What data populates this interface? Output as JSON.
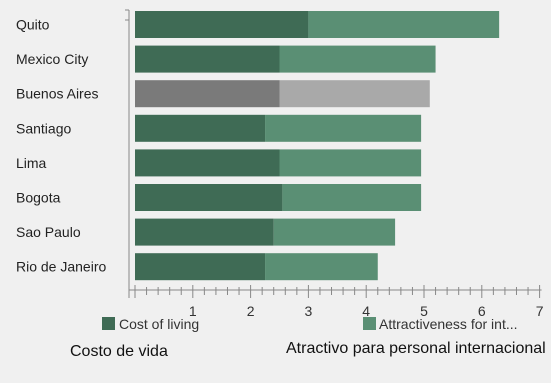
{
  "chart_data": {
    "type": "bar",
    "orientation": "horizontal",
    "stacked": true,
    "categories": [
      "Quito",
      "Mexico City",
      "Buenos Aires",
      "Santiago",
      "Lima",
      "Bogota",
      "Sao Paulo",
      "Rio de Janeiro"
    ],
    "series": [
      {
        "name": "Cost of living",
        "values": [
          3.0,
          2.5,
          2.5,
          2.25,
          2.5,
          2.55,
          2.4,
          2.25
        ]
      },
      {
        "name": "Attractiveness for int...",
        "values": [
          3.3,
          2.7,
          2.6,
          2.7,
          2.45,
          2.4,
          2.1,
          1.95
        ]
      }
    ],
    "xlim": [
      0,
      7
    ],
    "x_ticks": [
      "1",
      "2",
      "3",
      "4",
      "5",
      "6",
      "7"
    ],
    "grid": false,
    "legend": "bottom",
    "colors": {
      "cost": "#3f6b55",
      "attract": "#5a8f74",
      "highlight_cost": "#7a7a7a",
      "highlight_attract": "#a9a9a9"
    },
    "highlighted_category": "Buenos Aires"
  },
  "captions": {
    "left": "Costo de vida",
    "right": "Atractivo para personal internacional"
  }
}
